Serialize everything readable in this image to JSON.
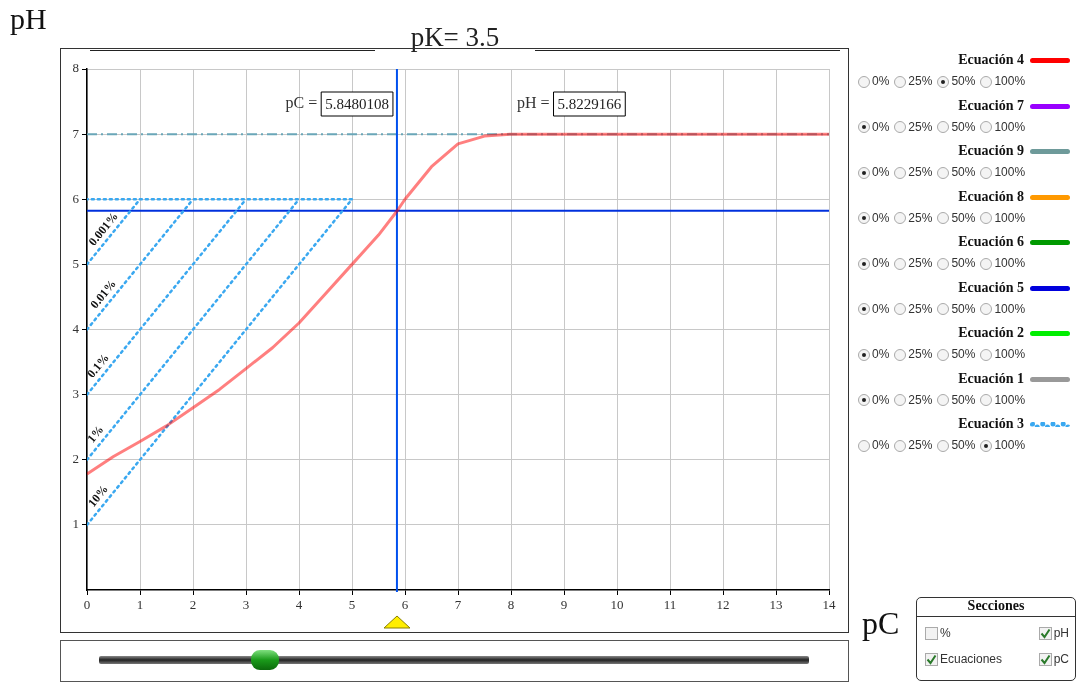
{
  "chart_data": {
    "type": "line",
    "title": "pK= 3.5",
    "xlabel": "pC",
    "ylabel": "pH",
    "x": [
      0,
      0.5,
      1,
      1.5,
      2,
      2.5,
      3,
      3.5,
      4,
      4.5,
      5,
      5.5,
      5.85,
      6,
      6.5,
      7,
      7.5,
      8,
      9,
      10,
      11,
      12,
      13,
      14
    ],
    "series": [
      {
        "name": "Ecuación 4",
        "color": "#ff0000",
        "values": [
          1.78,
          2.05,
          2.28,
          2.52,
          2.8,
          3.08,
          3.4,
          3.72,
          4.1,
          4.55,
          5.0,
          5.45,
          5.82,
          6.0,
          6.5,
          6.85,
          6.97,
          7,
          7,
          7,
          7,
          7,
          7,
          7
        ]
      },
      {
        "name": "Ecuación 7",
        "color": "#9900ff",
        "values": [
          null,
          null,
          null,
          null,
          null,
          null,
          null,
          null,
          null,
          null,
          null,
          null,
          null,
          null,
          null,
          null,
          null,
          null,
          null,
          null,
          null,
          null,
          null,
          null
        ]
      },
      {
        "name": "Ecuación 9",
        "color": "#6e9a9a",
        "values": [
          null,
          null,
          null,
          null,
          null,
          null,
          null,
          null,
          null,
          null,
          null,
          null,
          null,
          null,
          null,
          null,
          null,
          null,
          null,
          null,
          null,
          null,
          null,
          null
        ]
      },
      {
        "name": "Ecuación 8",
        "color": "#ff9900",
        "values": [
          null,
          null,
          null,
          null,
          null,
          null,
          null,
          null,
          null,
          null,
          null,
          null,
          null,
          null,
          null,
          null,
          null,
          null,
          null,
          null,
          null,
          null,
          null,
          null
        ]
      },
      {
        "name": "Ecuación 6",
        "color": "#009900",
        "values": [
          null,
          null,
          null,
          null,
          null,
          null,
          null,
          null,
          null,
          null,
          null,
          null,
          null,
          null,
          null,
          null,
          null,
          null,
          null,
          null,
          null,
          null,
          null,
          null
        ]
      },
      {
        "name": "Ecuación 5",
        "color": "#0000dd",
        "values": [
          null,
          null,
          null,
          null,
          null,
          null,
          null,
          null,
          null,
          null,
          null,
          null,
          null,
          null,
          null,
          null,
          null,
          null,
          null,
          null,
          null,
          null,
          null,
          null
        ]
      },
      {
        "name": "Ecuación 2",
        "color": "#00ee00",
        "values": [
          null,
          null,
          null,
          null,
          null,
          null,
          null,
          null,
          null,
          null,
          null,
          null,
          null,
          null,
          null,
          null,
          null,
          null,
          null,
          null,
          null,
          null,
          null,
          null
        ]
      },
      {
        "name": "Ecuación 1",
        "color": "#999999",
        "values": [
          null,
          null,
          null,
          null,
          null,
          null,
          null,
          null,
          null,
          null,
          null,
          null,
          null,
          null,
          null,
          null,
          null,
          null,
          null,
          null,
          null,
          null,
          null,
          null
        ]
      },
      {
        "name": "Ecuación 3",
        "color": "#3aa8f0",
        "line_style": "dotted",
        "x": [
          0,
          5,
          0,
          null,
          0,
          4,
          null,
          0,
          3,
          null,
          0,
          2,
          null,
          0,
          1
        ],
        "values": [
          1,
          6,
          6,
          null,
          2,
          6,
          null,
          3,
          6,
          null,
          4,
          6,
          null,
          5,
          6
        ]
      }
    ],
    "xlim": [
      0,
      14
    ],
    "xticks": [
      0,
      1,
      2,
      3,
      4,
      5,
      6,
      7,
      8,
      9,
      10,
      11,
      12,
      13,
      14
    ],
    "ylim": [
      0,
      8
    ],
    "yticks": [
      1,
      2,
      3,
      4,
      5,
      6,
      7,
      8
    ],
    "grid": true,
    "legend": "right",
    "marker": "none",
    "ref_lines": [
      {
        "axis": "y",
        "value": 7,
        "color": "#6aa6b8",
        "line_style": "dashed"
      },
      {
        "axis": "x",
        "value": 5.8480108,
        "label": "pC = 5.8480108",
        "color": "#0050ee"
      },
      {
        "axis": "y",
        "value": 5.8229166,
        "color": "#0030dd"
      }
    ],
    "annotations": [
      "Secciones",
      "%",
      "pH",
      "Ecuaciones",
      "pC",
      "0%",
      "25%",
      "50%",
      "100%",
      "pH = 5.8229166",
      {
        "text": "10%",
        "x": 0.35,
        "y": 1.35
      },
      {
        "text": "1%",
        "x": 0.3,
        "y": 2.3
      },
      {
        "text": "0.1%",
        "x": 0.35,
        "y": 3.35
      },
      {
        "text": "0.01%",
        "x": 0.45,
        "y": 4.45
      },
      {
        "text": "0.001%",
        "x": 0.45,
        "y": 5.45
      }
    ]
  }
}
